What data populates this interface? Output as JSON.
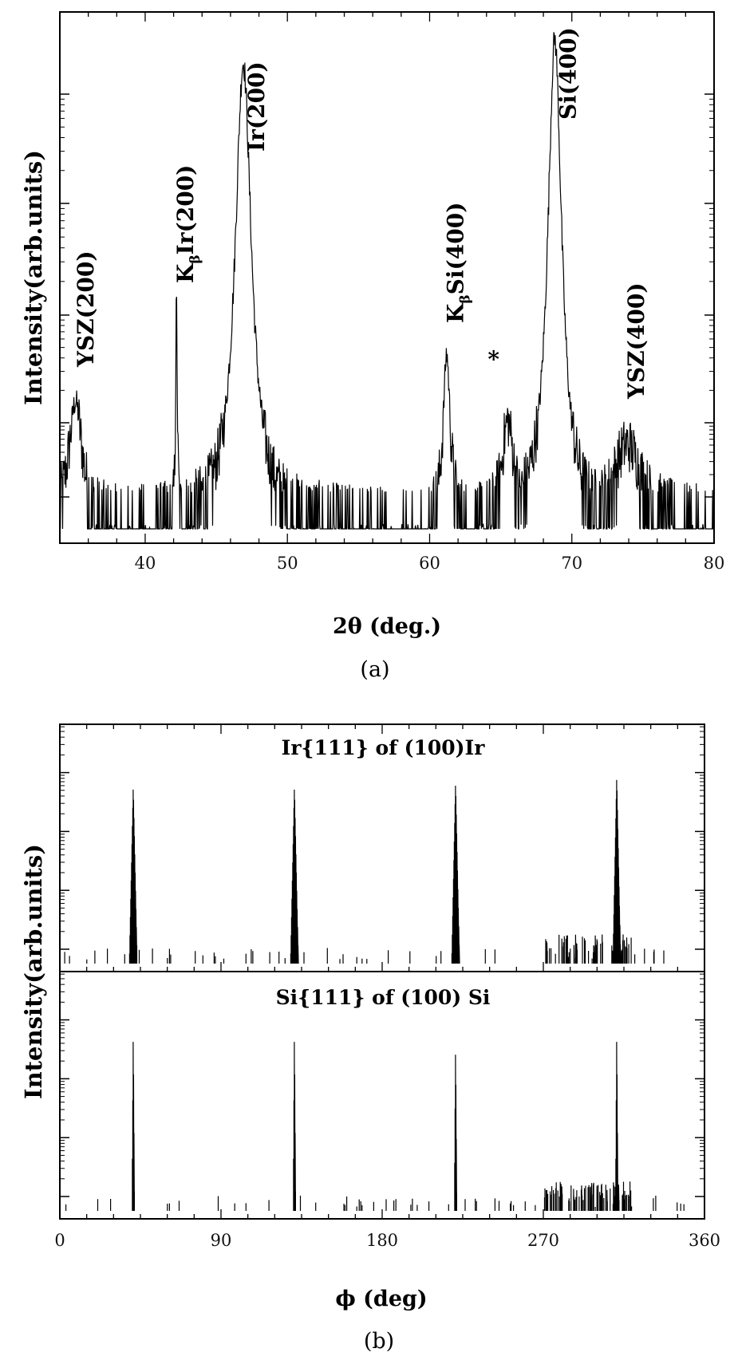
{
  "chart_data": [
    {
      "type": "line",
      "panel": "(a)",
      "xlabel": "2θ (deg.)",
      "ylabel": "Intensity(arb.units)",
      "xlim": [
        34,
        80
      ],
      "x_ticks": [
        40,
        50,
        60,
        70,
        80
      ],
      "yscale": "log",
      "grid": false,
      "peaks": [
        {
          "x": 35.1,
          "label": "YSZ(200)",
          "peak_height": 0.24,
          "width": 0.55
        },
        {
          "x": 42.2,
          "label": "K_β Ir(200)",
          "peak_height": 0.46,
          "width": 0.07
        },
        {
          "x": 46.9,
          "label": "Ir(200)",
          "peak_height": 0.95,
          "width": 0.7
        },
        {
          "x": 61.2,
          "label": "K_β Si(400)",
          "peak_height": 0.34,
          "width": 0.3
        },
        {
          "x": 65.5,
          "label": "*",
          "peak_height": 0.2,
          "width": 0.5
        },
        {
          "x": 68.8,
          "label": "Si(400)",
          "peak_height": 1.0,
          "width": 0.6
        },
        {
          "x": 73.9,
          "label": "YSZ(400)",
          "peak_height": 0.15,
          "width": 1.2
        }
      ],
      "annotations": [
        {
          "text": "YSZ(200)",
          "x": 35.8
        },
        {
          "text": "K",
          "sub": "β",
          "text2": "Ir(200)",
          "x": 42.8
        },
        {
          "text": "Ir(200)",
          "x": 47.8
        },
        {
          "text": "K",
          "sub": "β",
          "text2": "Si(400)",
          "x": 61.8
        },
        {
          "text": "*",
          "x": 64.5
        },
        {
          "text": "Si(400)",
          "x": 69.7
        },
        {
          "text": "YSZ(400)",
          "x": 74.5
        }
      ],
      "caption": "(a)"
    },
    {
      "type": "line",
      "panel": "(b)",
      "xlabel": "ϕ (deg)",
      "ylabel": "Intensity(arb.units)",
      "xlim": [
        0,
        360
      ],
      "x_ticks": [
        0,
        90,
        180,
        270,
        360
      ],
      "yscale": "log",
      "grid": false,
      "series": [
        {
          "name": "Ir{111} of (100)Ir",
          "peaks": [
            41,
            131,
            221,
            311
          ],
          "peak_heights": [
            0.9,
            0.9,
            0.92,
            0.95
          ],
          "width": 2.2
        },
        {
          "name": "Si{111} of (100) Si",
          "peaks": [
            41,
            131,
            221,
            311
          ],
          "peak_heights": [
            0.92,
            0.92,
            0.85,
            0.92
          ],
          "width": 0.7
        }
      ],
      "caption": "(b)"
    }
  ]
}
